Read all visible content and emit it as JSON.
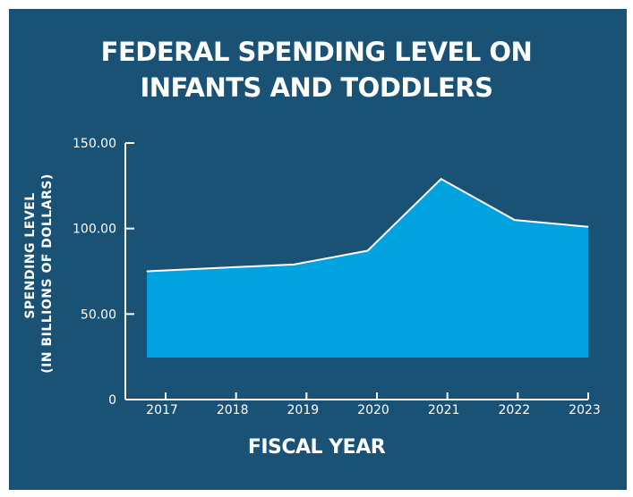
{
  "chart_data": {
    "type": "area",
    "title_lines": [
      "FEDERAL SPENDING LEVEL ON",
      "INFANTS AND TODDLERS"
    ],
    "xlabel": "FISCAL YEAR",
    "ylabel_lines": [
      "SPENDING LEVEL",
      "(IN BILLIONS OF DOLLARS)"
    ],
    "categories": [
      "2017",
      "2018",
      "2019",
      "2020",
      "2021",
      "2022",
      "2023"
    ],
    "values": [
      75,
      77,
      79,
      87,
      129,
      105,
      101
    ],
    "y_ticks": [
      "150.00",
      "100.00",
      "50.00",
      "0"
    ],
    "ylim": [
      0,
      150
    ],
    "grid": false,
    "colors": {
      "background": "#1a5276",
      "area": "#00a3e0",
      "stroke": "#ffffff",
      "text": "#ffffff"
    }
  }
}
